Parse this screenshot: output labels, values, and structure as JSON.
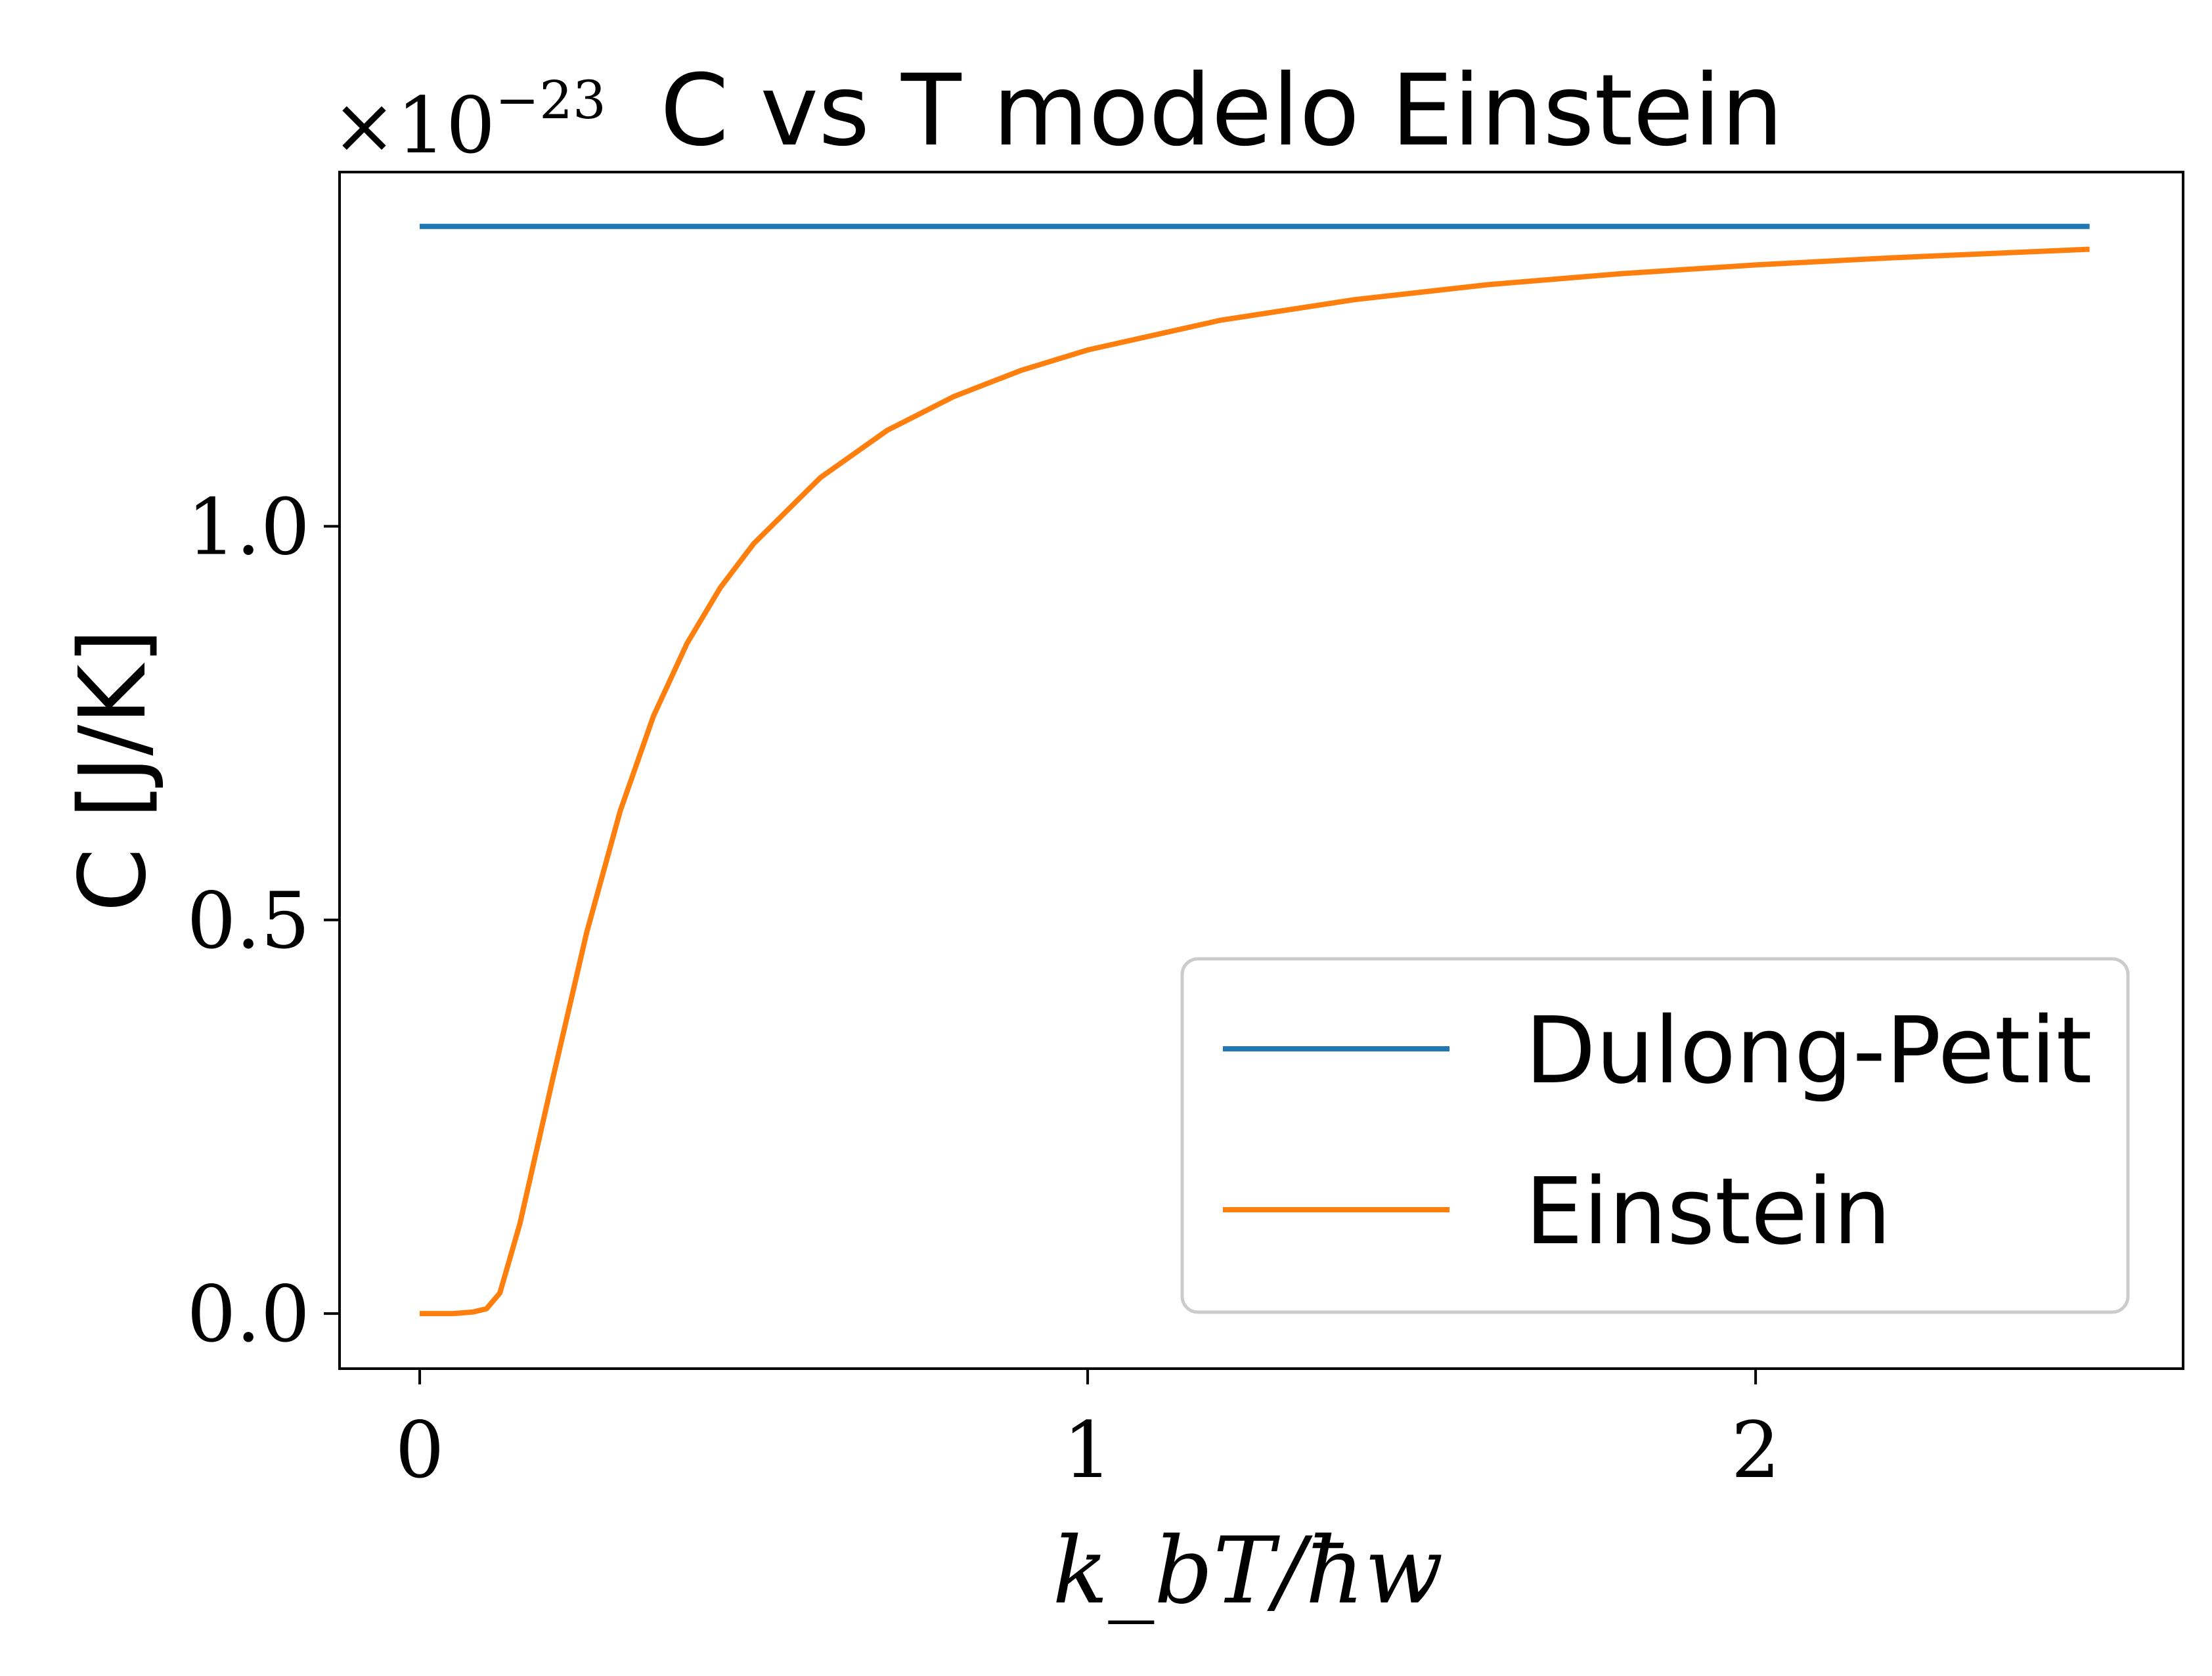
{
  "chart_data": {
    "type": "line",
    "title": "C vs T modelo Einstein",
    "xlabel": "k_bT/ħw",
    "ylabel": "C [J/K]",
    "y_multiplier": "×10",
    "y_multiplier_exponent": "−23",
    "xlim": [
      -0.12,
      2.64
    ],
    "ylim": [
      -0.07,
      1.45
    ],
    "xticks": [
      0,
      1,
      2
    ],
    "xtick_labels": [
      "0",
      "1",
      "2"
    ],
    "yticks": [
      0.0,
      0.5,
      1.0
    ],
    "ytick_labels": [
      "0.0",
      "0.5",
      "1.0"
    ],
    "grid": false,
    "legend_position": "lower-right",
    "series": [
      {
        "name": "Dulong-Petit",
        "color": "#1f77b4",
        "x": [
          0.0,
          2.5
        ],
        "y": [
          1.381,
          1.381
        ]
      },
      {
        "name": "Einstein",
        "color": "#ff7f0e",
        "x": [
          0.0,
          0.05,
          0.08,
          0.1,
          0.12,
          0.15,
          0.2,
          0.25,
          0.3,
          0.35,
          0.4,
          0.45,
          0.5,
          0.6,
          0.7,
          0.8,
          0.9,
          1.0,
          1.2,
          1.4,
          1.6,
          1.8,
          2.0,
          2.2,
          2.5
        ],
        "y": [
          0.0,
          0.0,
          0.002,
          0.006,
          0.026,
          0.114,
          0.301,
          0.484,
          0.638,
          0.759,
          0.851,
          0.922,
          0.978,
          1.062,
          1.122,
          1.165,
          1.198,
          1.224,
          1.262,
          1.288,
          1.307,
          1.321,
          1.332,
          1.341,
          1.352
        ]
      }
    ]
  }
}
